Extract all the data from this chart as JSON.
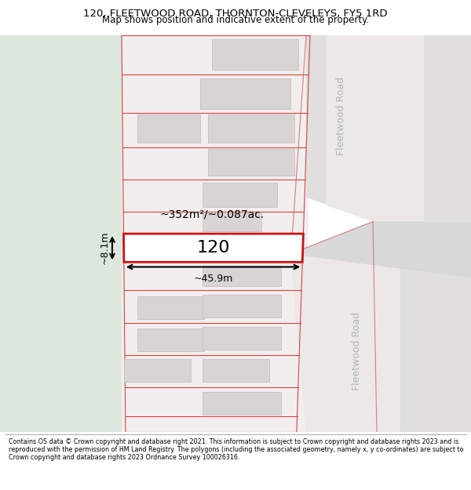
{
  "title_line1": "120, FLEETWOOD ROAD, THORNTON-CLEVELEYS, FY5 1RD",
  "title_line2": "Map shows position and indicative extent of the property.",
  "footer_text": "Contains OS data © Crown copyright and database right 2021. This information is subject to Crown copyright and database rights 2023 and is reproduced with the permission of HM Land Registry. The polygons (including the associated geometry, namely x, y co-ordinates) are subject to Crown copyright and database rights 2023 Ordnance Survey 100026316.",
  "area_label": "~352m²/~0.087ac.",
  "width_label": "~45.9m",
  "height_label": "~8.1m",
  "plot_number": "120",
  "road_label_top": "Fleetwood Road",
  "road_label_bottom": "Fleetwood Road",
  "bg_green_color": "#dce8de",
  "bg_land_color": "#f2eeee",
  "road_color": "#e0dede",
  "road_inner_color": "#ece8e8",
  "plot_outline_color": "#d44444",
  "building_fill_color": "#d8d4d4",
  "building_outline_color": "#c8b8b8",
  "highlight_color": "#cc1111",
  "title_fontsize": 9.5,
  "subtitle_fontsize": 8.5,
  "footer_fontsize": 5.8
}
